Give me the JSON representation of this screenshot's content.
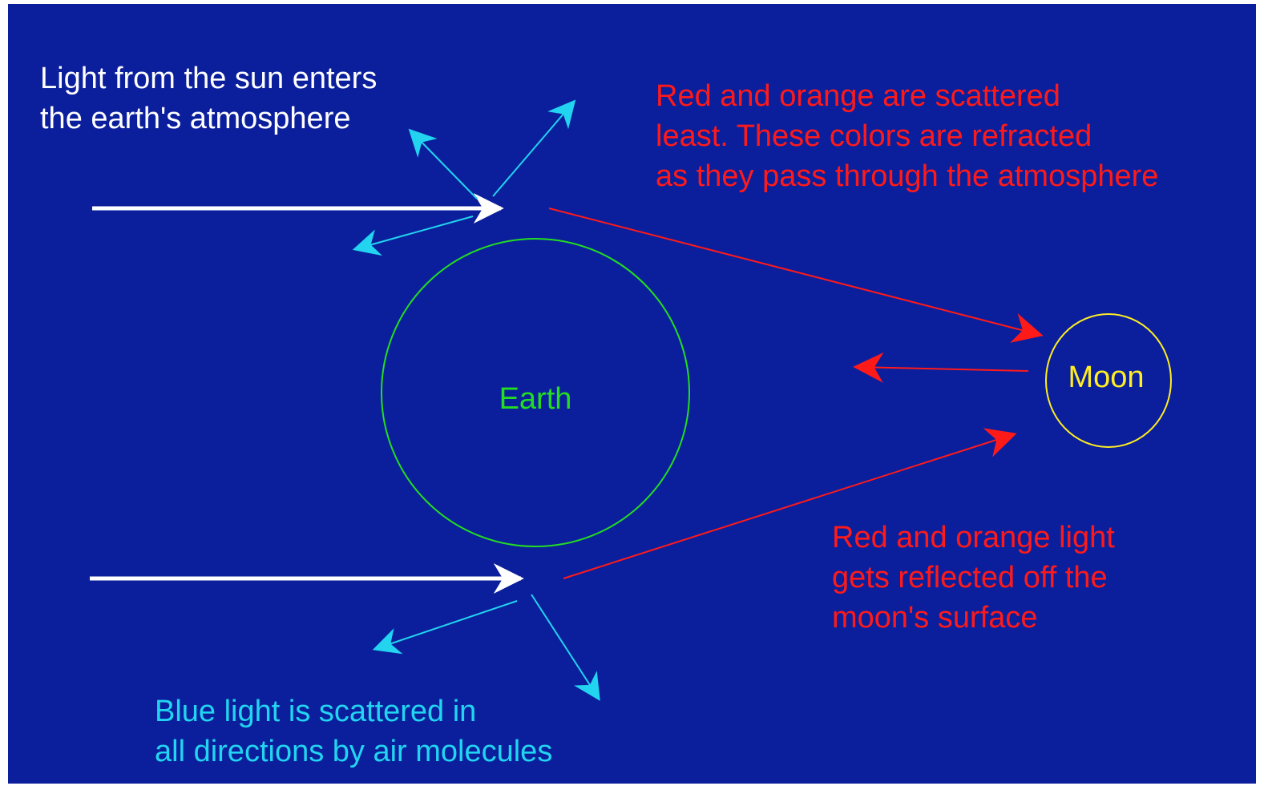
{
  "annotations": {
    "sunlight": [
      "Light from the sun enters",
      "the earth's atmosphere"
    ],
    "refracted": [
      "Red and orange are scattered",
      "least.  These colors are refracted",
      "as they pass through the atmosphere"
    ],
    "reflected": [
      "Red and orange light",
      "gets reflected off the",
      "moon's surface"
    ],
    "scattered": [
      "Blue light is scattered in",
      "all directions by air molecules"
    ]
  },
  "nodes": [
    {
      "label": "Earth"
    },
    {
      "label": "Moon"
    }
  ]
}
